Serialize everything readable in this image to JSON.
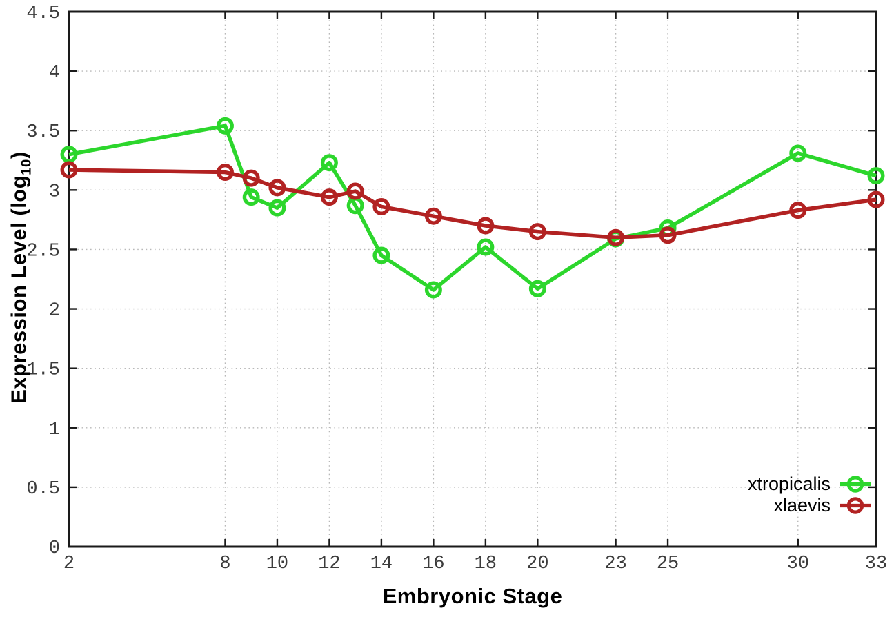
{
  "chart_data": {
    "type": "line",
    "title": "",
    "xlabel": "Embryonic Stage",
    "ylabel": "Expression Level (log10)",
    "ylabel_parts": {
      "main": "Expression Level (log",
      "sub": "10",
      "close": ")"
    },
    "xlim": [
      2,
      33
    ],
    "ylim": [
      0,
      4.5
    ],
    "grid": true,
    "grid_style": "dotted",
    "legend_position": "bottom-right-inside",
    "x_ticks": [
      2,
      8,
      10,
      12,
      14,
      16,
      18,
      20,
      23,
      25,
      30,
      33
    ],
    "x_tick_labels": [
      "2",
      "8",
      "10",
      "12",
      "14",
      "16",
      "18",
      "20",
      "23",
      "25",
      "30",
      "33"
    ],
    "y_ticks": [
      0,
      0.5,
      1,
      1.5,
      2,
      2.5,
      3,
      3.5,
      4,
      4.5
    ],
    "y_tick_labels": [
      "0",
      "0.5",
      "1",
      "1.5",
      "2",
      "2.5",
      "3",
      "3.5",
      "4",
      "4.5"
    ],
    "x": [
      2,
      8,
      9,
      10,
      12,
      13,
      14,
      16,
      18,
      20,
      23,
      25,
      30,
      33
    ],
    "series": [
      {
        "name": "xtropicalis",
        "color": "#2cd62c",
        "marker": "open-circle",
        "values": [
          3.3,
          3.54,
          2.94,
          2.85,
          3.23,
          2.87,
          2.45,
          2.16,
          2.52,
          2.17,
          2.59,
          2.68,
          3.31,
          3.12
        ]
      },
      {
        "name": "xlaevis",
        "color": "#b22222",
        "marker": "open-circle",
        "values": [
          3.17,
          3.15,
          3.1,
          3.02,
          2.94,
          2.99,
          2.86,
          2.78,
          2.7,
          2.65,
          2.6,
          2.62,
          2.83,
          2.92
        ]
      }
    ],
    "colors": {
      "background": "#ffffff",
      "border": "#1a1a1a",
      "grid": "#b8b8b8",
      "tick_label": "#3c3c3c"
    }
  }
}
